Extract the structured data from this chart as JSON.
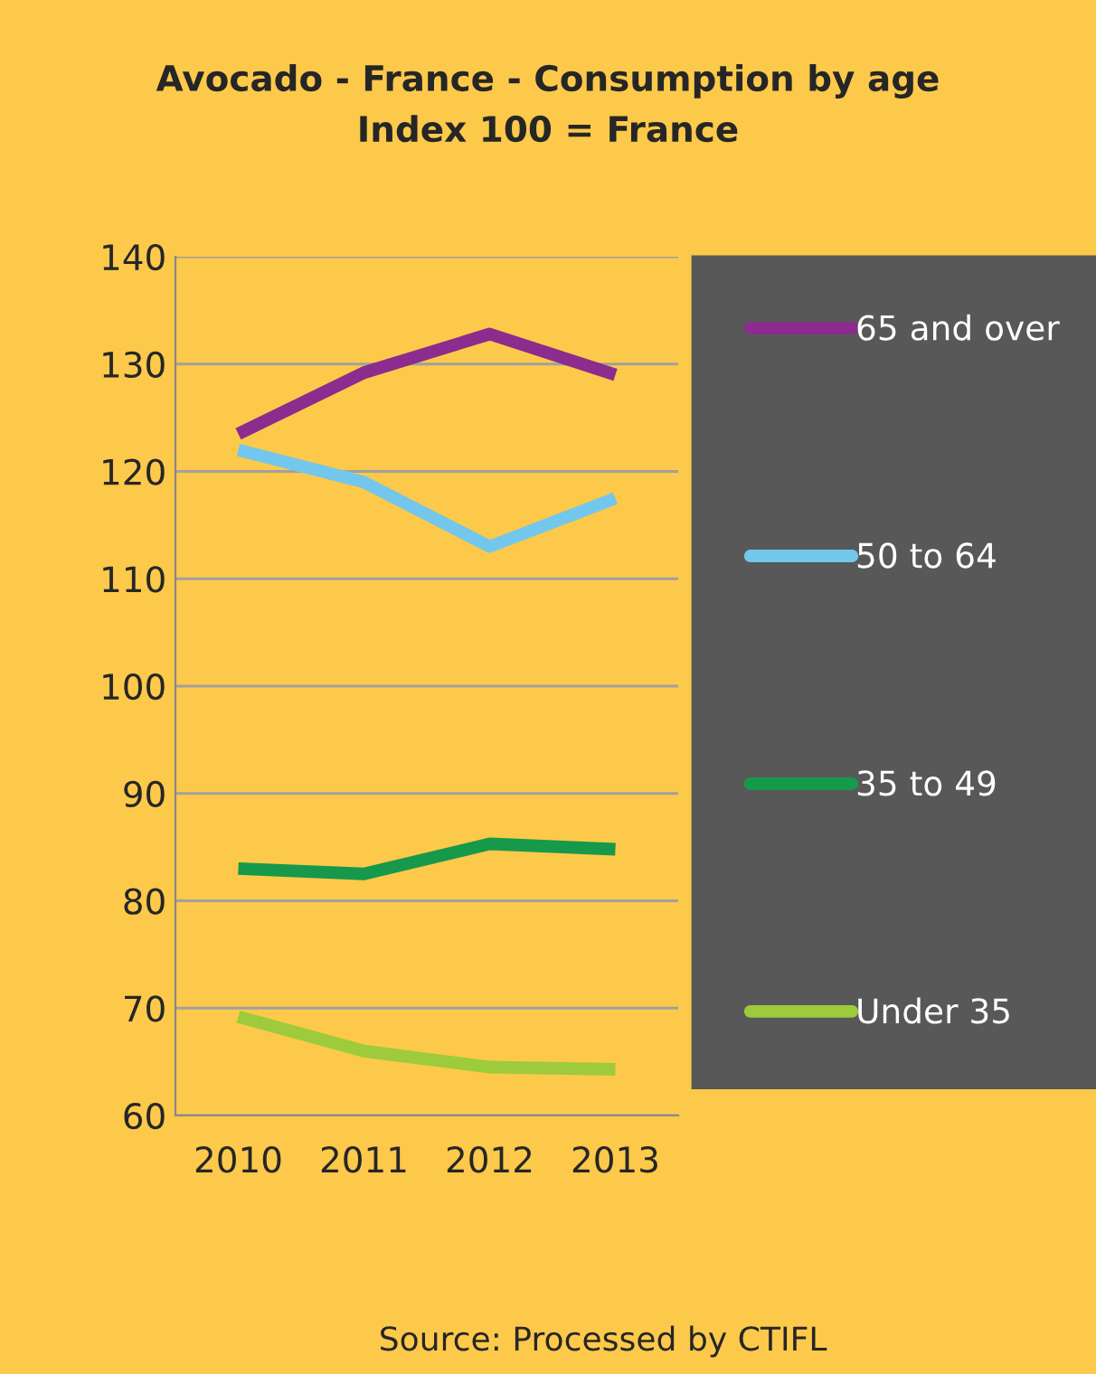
{
  "chart_data": {
    "type": "line",
    "title": "Avocado - France - Consumption by age",
    "subtitle": "Index 100 = France",
    "categories": [
      "2010",
      "2011",
      "2012",
      "2013"
    ],
    "series": [
      {
        "name": "65 and over",
        "color": "#8b2c8e",
        "values": [
          123.5,
          129.2,
          132.8,
          129.0
        ]
      },
      {
        "name": "50 to 64",
        "color": "#74c7ec",
        "values": [
          122,
          119,
          113,
          117.5
        ]
      },
      {
        "name": "35 to 49",
        "color": "#16994b",
        "values": [
          83,
          82.5,
          85.3,
          84.8
        ]
      },
      {
        "name": "Under 35",
        "color": "#9dcb3c",
        "values": [
          69.2,
          66,
          64.5,
          64.3
        ]
      }
    ],
    "ylim": [
      60,
      140
    ],
    "yticks": [
      60,
      70,
      80,
      90,
      100,
      110,
      120,
      130,
      140
    ],
    "grid": "y",
    "legend": "right",
    "marker": "none",
    "line_style": "solid",
    "annotations": [
      "Source: Processed by CTIFL"
    ]
  }
}
